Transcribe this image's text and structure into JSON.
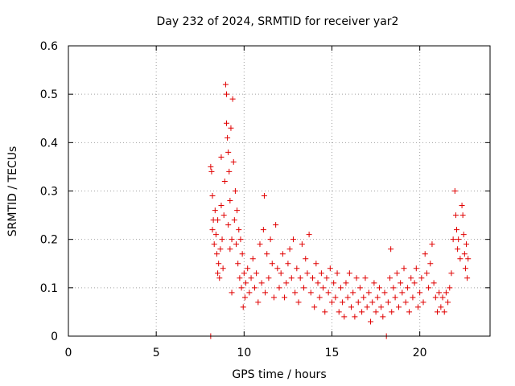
{
  "chart_data": {
    "type": "scatter",
    "title": "Day 232 of 2024, SRMTID for receiver yar2",
    "xlabel": "GPS time / hours",
    "ylabel": "SRMTID / TECUs",
    "xlim": [
      0,
      24
    ],
    "ylim": [
      0,
      0.6
    ],
    "x_ticks": [
      0,
      5,
      10,
      15,
      20
    ],
    "x_tick_labels": [
      "0",
      "5",
      "10",
      "15",
      "20"
    ],
    "y_ticks": [
      0,
      0.1,
      0.2,
      0.3,
      0.4,
      0.5,
      0.6
    ],
    "y_tick_labels": [
      "0",
      "0.1",
      "0.2",
      "0.3",
      "0.4",
      "0.5",
      "0.6"
    ],
    "grid": true,
    "marker": "+",
    "color": "#e00000",
    "series": [
      {
        "name": "SRMTID",
        "points": [
          [
            8.1,
            0.0
          ],
          [
            8.1,
            0.35
          ],
          [
            8.15,
            0.34
          ],
          [
            8.2,
            0.29
          ],
          [
            8.2,
            0.22
          ],
          [
            8.25,
            0.24
          ],
          [
            8.3,
            0.19
          ],
          [
            8.35,
            0.26
          ],
          [
            8.4,
            0.21
          ],
          [
            8.45,
            0.17
          ],
          [
            8.5,
            0.13
          ],
          [
            8.5,
            0.24
          ],
          [
            8.55,
            0.15
          ],
          [
            8.6,
            0.12
          ],
          [
            8.65,
            0.18
          ],
          [
            8.7,
            0.27
          ],
          [
            8.7,
            0.37
          ],
          [
            8.75,
            0.2
          ],
          [
            8.8,
            0.14
          ],
          [
            8.85,
            0.25
          ],
          [
            8.9,
            0.32
          ],
          [
            8.95,
            0.52
          ],
          [
            9.0,
            0.5
          ],
          [
            9.0,
            0.44
          ],
          [
            9.05,
            0.41
          ],
          [
            9.1,
            0.38
          ],
          [
            9.1,
            0.23
          ],
          [
            9.15,
            0.34
          ],
          [
            9.2,
            0.28
          ],
          [
            9.2,
            0.18
          ],
          [
            9.25,
            0.43
          ],
          [
            9.3,
            0.2
          ],
          [
            9.3,
            0.09
          ],
          [
            9.35,
            0.49
          ],
          [
            9.4,
            0.36
          ],
          [
            9.45,
            0.24
          ],
          [
            9.5,
            0.3
          ],
          [
            9.55,
            0.19
          ],
          [
            9.6,
            0.26
          ],
          [
            9.65,
            0.15
          ],
          [
            9.7,
            0.22
          ],
          [
            9.75,
            0.12
          ],
          [
            9.8,
            0.2
          ],
          [
            9.85,
            0.1
          ],
          [
            9.9,
            0.17
          ],
          [
            9.95,
            0.06
          ],
          [
            10.0,
            0.13
          ],
          [
            10.05,
            0.08
          ],
          [
            10.1,
            0.11
          ],
          [
            10.2,
            0.14
          ],
          [
            10.3,
            0.09
          ],
          [
            10.4,
            0.12
          ],
          [
            10.5,
            0.16
          ],
          [
            10.6,
            0.1
          ],
          [
            10.7,
            0.13
          ],
          [
            10.8,
            0.07
          ],
          [
            10.9,
            0.19
          ],
          [
            11.0,
            0.11
          ],
          [
            11.1,
            0.22
          ],
          [
            11.15,
            0.29
          ],
          [
            11.2,
            0.09
          ],
          [
            11.3,
            0.17
          ],
          [
            11.4,
            0.12
          ],
          [
            11.5,
            0.2
          ],
          [
            11.6,
            0.15
          ],
          [
            11.7,
            0.08
          ],
          [
            11.8,
            0.23
          ],
          [
            11.9,
            0.14
          ],
          [
            12.0,
            0.1
          ],
          [
            12.1,
            0.13
          ],
          [
            12.2,
            0.17
          ],
          [
            12.3,
            0.08
          ],
          [
            12.4,
            0.11
          ],
          [
            12.5,
            0.15
          ],
          [
            12.6,
            0.18
          ],
          [
            12.7,
            0.12
          ],
          [
            12.8,
            0.2
          ],
          [
            12.9,
            0.09
          ],
          [
            13.0,
            0.14
          ],
          [
            13.1,
            0.07
          ],
          [
            13.2,
            0.12
          ],
          [
            13.3,
            0.19
          ],
          [
            13.4,
            0.1
          ],
          [
            13.5,
            0.16
          ],
          [
            13.6,
            0.13
          ],
          [
            13.7,
            0.21
          ],
          [
            13.8,
            0.09
          ],
          [
            13.9,
            0.12
          ],
          [
            14.0,
            0.06
          ],
          [
            14.1,
            0.15
          ],
          [
            14.2,
            0.11
          ],
          [
            14.3,
            0.08
          ],
          [
            14.4,
            0.13
          ],
          [
            14.5,
            0.1
          ],
          [
            14.6,
            0.05
          ],
          [
            14.7,
            0.12
          ],
          [
            14.8,
            0.09
          ],
          [
            14.9,
            0.14
          ],
          [
            15.0,
            0.07
          ],
          [
            15.1,
            0.11
          ],
          [
            15.2,
            0.08
          ],
          [
            15.3,
            0.13
          ],
          [
            15.4,
            0.05
          ],
          [
            15.5,
            0.1
          ],
          [
            15.6,
            0.07
          ],
          [
            15.7,
            0.04
          ],
          [
            15.8,
            0.11
          ],
          [
            15.9,
            0.08
          ],
          [
            16.0,
            0.13
          ],
          [
            16.1,
            0.06
          ],
          [
            16.2,
            0.09
          ],
          [
            16.3,
            0.04
          ],
          [
            16.4,
            0.12
          ],
          [
            16.5,
            0.07
          ],
          [
            16.6,
            0.1
          ],
          [
            16.7,
            0.05
          ],
          [
            16.8,
            0.08
          ],
          [
            16.9,
            0.12
          ],
          [
            17.0,
            0.06
          ],
          [
            17.1,
            0.09
          ],
          [
            17.2,
            0.03
          ],
          [
            17.3,
            0.07
          ],
          [
            17.4,
            0.11
          ],
          [
            17.5,
            0.05
          ],
          [
            17.6,
            0.08
          ],
          [
            17.7,
            0.1
          ],
          [
            17.8,
            0.06
          ],
          [
            17.9,
            0.04
          ],
          [
            18.0,
            0.09
          ],
          [
            18.1,
            0.0
          ],
          [
            18.2,
            0.07
          ],
          [
            18.3,
            0.12
          ],
          [
            18.35,
            0.18
          ],
          [
            18.4,
            0.05
          ],
          [
            18.5,
            0.1
          ],
          [
            18.6,
            0.08
          ],
          [
            18.7,
            0.13
          ],
          [
            18.8,
            0.06
          ],
          [
            18.9,
            0.11
          ],
          [
            19.0,
            0.09
          ],
          [
            19.1,
            0.14
          ],
          [
            19.2,
            0.07
          ],
          [
            19.3,
            0.1
          ],
          [
            19.4,
            0.05
          ],
          [
            19.5,
            0.12
          ],
          [
            19.6,
            0.08
          ],
          [
            19.7,
            0.11
          ],
          [
            19.8,
            0.14
          ],
          [
            19.9,
            0.06
          ],
          [
            20.0,
            0.09
          ],
          [
            20.1,
            0.12
          ],
          [
            20.2,
            0.07
          ],
          [
            20.3,
            0.17
          ],
          [
            20.4,
            0.13
          ],
          [
            20.5,
            0.1
          ],
          [
            20.6,
            0.15
          ],
          [
            20.7,
            0.19
          ],
          [
            20.8,
            0.11
          ],
          [
            20.9,
            0.08
          ],
          [
            21.0,
            0.05
          ],
          [
            21.1,
            0.09
          ],
          [
            21.2,
            0.06
          ],
          [
            21.3,
            0.08
          ],
          [
            21.4,
            0.05
          ],
          [
            21.5,
            0.09
          ],
          [
            21.6,
            0.07
          ],
          [
            21.7,
            0.1
          ],
          [
            21.8,
            0.13
          ],
          [
            21.9,
            0.2
          ],
          [
            22.0,
            0.3
          ],
          [
            22.05,
            0.25
          ],
          [
            22.1,
            0.22
          ],
          [
            22.15,
            0.18
          ],
          [
            22.2,
            0.2
          ],
          [
            22.3,
            0.16
          ],
          [
            22.4,
            0.27
          ],
          [
            22.45,
            0.25
          ],
          [
            22.5,
            0.21
          ],
          [
            22.55,
            0.17
          ],
          [
            22.6,
            0.14
          ],
          [
            22.65,
            0.19
          ],
          [
            22.7,
            0.12
          ],
          [
            22.75,
            0.16
          ]
        ]
      }
    ]
  }
}
